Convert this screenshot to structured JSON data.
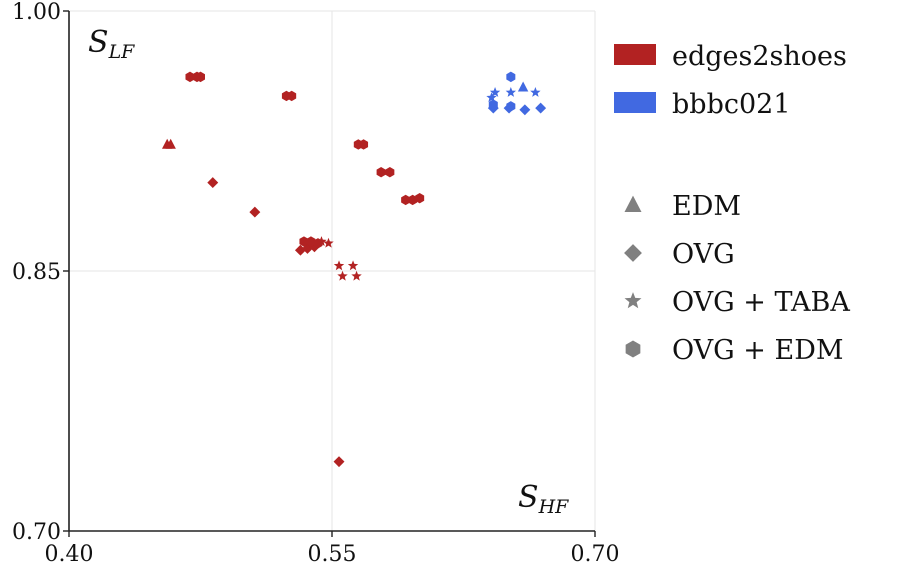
{
  "chart_data": {
    "type": "scatter",
    "title": "",
    "xlabel": "",
    "ylabel": "",
    "xlim": [
      0.4,
      0.7
    ],
    "ylim": [
      0.7,
      1.0
    ],
    "x_ticks": [
      0.4,
      0.55,
      0.7
    ],
    "y_ticks": [
      0.7,
      0.85,
      1.0
    ],
    "x_tick_labels": [
      "0.40",
      "0.55",
      "0.70"
    ],
    "y_tick_labels": [
      "0.70",
      "0.85",
      "1.00"
    ],
    "grid": true,
    "corner_labels": {
      "y_corner": {
        "base": "S",
        "sub": "LF"
      },
      "x_corner": {
        "base": "S",
        "sub": "HF"
      }
    },
    "color_legend": [
      {
        "label": "edges2shoes",
        "color": "#b22222"
      },
      {
        "label": "bbbc021",
        "color": "#4169e1"
      }
    ],
    "marker_legend": [
      {
        "label": "EDM",
        "marker": "triangle"
      },
      {
        "label": "OVG",
        "marker": "diamond"
      },
      {
        "label": "OVG + TABA",
        "marker": "star"
      },
      {
        "label": "OVG + EDM",
        "marker": "hexagon"
      }
    ],
    "marker_legend_color": "#808080",
    "series": [
      {
        "dataset": "edges2shoes",
        "method": "EDM",
        "color": "#b22222",
        "marker": "triangle",
        "points": [
          [
            0.456,
            0.923
          ],
          [
            0.458,
            0.923
          ]
        ]
      },
      {
        "dataset": "edges2shoes",
        "method": "OVG",
        "color": "#b22222",
        "marker": "diamond",
        "points": [
          [
            0.482,
            0.901
          ],
          [
            0.506,
            0.884
          ],
          [
            0.532,
            0.862
          ],
          [
            0.536,
            0.863
          ],
          [
            0.54,
            0.864
          ],
          [
            0.554,
            0.74
          ]
        ]
      },
      {
        "dataset": "edges2shoes",
        "method": "OVG + TABA",
        "color": "#b22222",
        "marker": "star",
        "points": [
          [
            0.538,
            0.867
          ],
          [
            0.544,
            0.867
          ],
          [
            0.548,
            0.866
          ],
          [
            0.554,
            0.853
          ],
          [
            0.562,
            0.853
          ],
          [
            0.556,
            0.847
          ],
          [
            0.564,
            0.847
          ]
        ]
      },
      {
        "dataset": "edges2shoes",
        "method": "OVG + EDM",
        "color": "#b22222",
        "marker": "hexagon",
        "points": [
          [
            0.469,
            0.962
          ],
          [
            0.473,
            0.962
          ],
          [
            0.475,
            0.962
          ],
          [
            0.524,
            0.951
          ],
          [
            0.527,
            0.951
          ],
          [
            0.565,
            0.923
          ],
          [
            0.568,
            0.923
          ],
          [
            0.578,
            0.907
          ],
          [
            0.583,
            0.907
          ],
          [
            0.592,
            0.891
          ],
          [
            0.596,
            0.891
          ],
          [
            0.6,
            0.892
          ],
          [
            0.534,
            0.867
          ],
          [
            0.538,
            0.867
          ],
          [
            0.542,
            0.866
          ]
        ]
      },
      {
        "dataset": "bbbc021",
        "method": "EDM",
        "color": "#4169e1",
        "marker": "triangle",
        "points": [
          [
            0.659,
            0.956
          ]
        ]
      },
      {
        "dataset": "bbbc021",
        "method": "OVG",
        "color": "#4169e1",
        "marker": "diamond",
        "points": [
          [
            0.642,
            0.944
          ],
          [
            0.651,
            0.944
          ],
          [
            0.66,
            0.943
          ],
          [
            0.669,
            0.944
          ]
        ]
      },
      {
        "dataset": "bbbc021",
        "method": "OVG + TABA",
        "color": "#4169e1",
        "marker": "star",
        "points": [
          [
            0.641,
            0.95
          ],
          [
            0.643,
            0.953
          ],
          [
            0.652,
            0.953
          ],
          [
            0.666,
            0.953
          ]
        ]
      },
      {
        "dataset": "bbbc021",
        "method": "OVG + EDM",
        "color": "#4169e1",
        "marker": "hexagon",
        "points": [
          [
            0.642,
            0.946
          ],
          [
            0.652,
            0.945
          ],
          [
            0.652,
            0.962
          ]
        ]
      }
    ]
  }
}
